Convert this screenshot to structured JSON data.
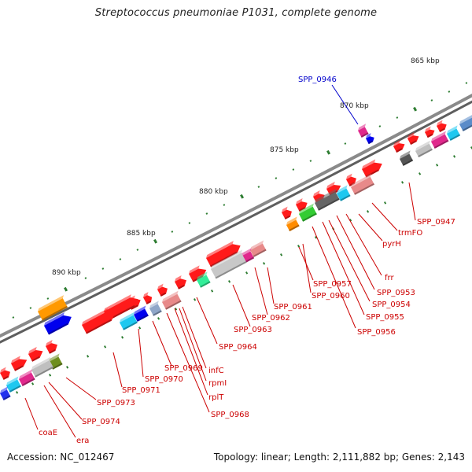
{
  "header": {
    "title": "Streptococcus pneumoniae P1031, complete genome"
  },
  "footer": {
    "accession": "Accession: NC_012467",
    "stats": "Topology: linear; Length: 2,111,882 bp; Genes: 2,143"
  },
  "colors": {
    "gene_default": "#ff0000",
    "label_red": "#cc0000",
    "label_blue": "#0000cc",
    "backbone": "#808080",
    "tick": "#2e7d32"
  },
  "ruler": {
    "marks": [
      {
        "label": "865 kbp"
      },
      {
        "label": "870 kbp"
      },
      {
        "label": "875 kbp"
      },
      {
        "label": "880 kbp"
      },
      {
        "label": "885 kbp"
      },
      {
        "label": "890 kbp"
      }
    ]
  },
  "gene_labels": [
    {
      "text": "SPP_0946",
      "color": "blue"
    },
    {
      "text": "SPP_0947",
      "color": "red"
    },
    {
      "text": "trmFO",
      "color": "red"
    },
    {
      "text": "pyrH",
      "color": "red"
    },
    {
      "text": "frr",
      "color": "red"
    },
    {
      "text": "SPP_0953",
      "color": "red"
    },
    {
      "text": "SPP_0954",
      "color": "red"
    },
    {
      "text": "SPP_0955",
      "color": "red"
    },
    {
      "text": "SPP_0956",
      "color": "red"
    },
    {
      "text": "SPP_0957",
      "color": "red"
    },
    {
      "text": "SPP_0960",
      "color": "red"
    },
    {
      "text": "SPP_0961",
      "color": "red"
    },
    {
      "text": "SPP_0962",
      "color": "red"
    },
    {
      "text": "SPP_0963",
      "color": "red"
    },
    {
      "text": "SPP_0964",
      "color": "red"
    },
    {
      "text": "infC",
      "color": "red"
    },
    {
      "text": "rpmI",
      "color": "red"
    },
    {
      "text": "rplT",
      "color": "red"
    },
    {
      "text": "SPP_0968",
      "color": "red"
    },
    {
      "text": "SPP_0969",
      "color": "red"
    },
    {
      "text": "SPP_0970",
      "color": "red"
    },
    {
      "text": "SPP_0971",
      "color": "red"
    },
    {
      "text": "SPP_0973",
      "color": "red"
    },
    {
      "text": "SPP_0974",
      "color": "red"
    },
    {
      "text": "era",
      "color": "red"
    },
    {
      "text": "coaE",
      "color": "red"
    }
  ]
}
